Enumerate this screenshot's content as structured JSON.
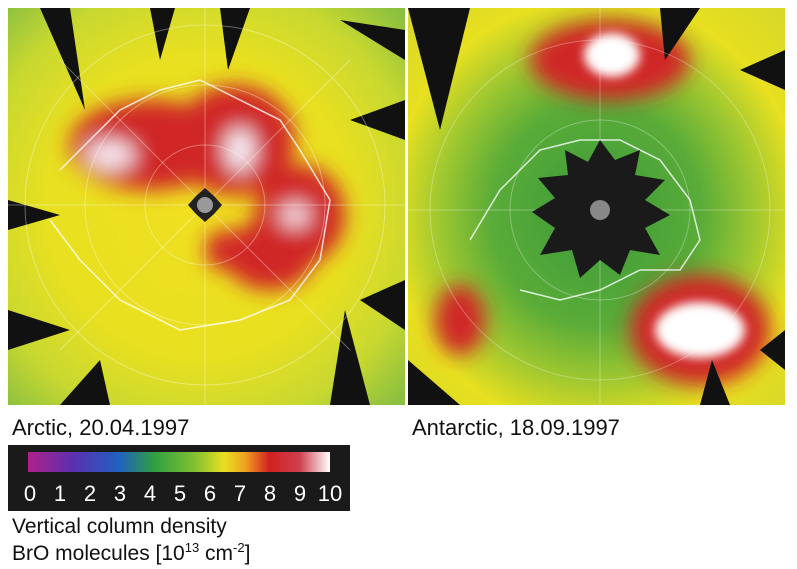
{
  "panels": [
    {
      "caption": "Arctic, 20.04.1997"
    },
    {
      "caption": "Antarctic, 18.09.1997"
    }
  ],
  "colorbar": {
    "ticks": [
      "0",
      "1",
      "2",
      "3",
      "4",
      "5",
      "6",
      "7",
      "8",
      "9",
      "10"
    ],
    "title": "Vertical column density",
    "units": {
      "prefix": "BrO molecules [10",
      "exponent": "13",
      "middle": " cm",
      "unit_exponent": "-2",
      "suffix": "]"
    }
  }
}
